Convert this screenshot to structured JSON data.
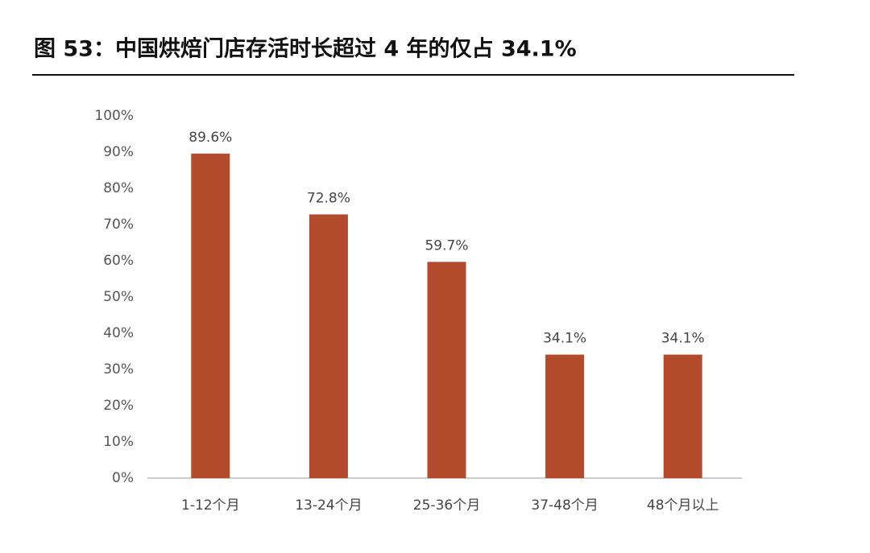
{
  "chart_data": {
    "type": "bar",
    "title": "图 53：中国烘焙门店存活时长超过 4 年的仅占 34.1%",
    "categories": [
      "1-12个月",
      "13-24个月",
      "25-36个月",
      "37-48个月",
      "48个月以上"
    ],
    "values": [
      89.6,
      72.8,
      59.7,
      34.1,
      34.1
    ],
    "value_labels": [
      "89.6%",
      "72.8%",
      "59.7%",
      "34.1%",
      "34.1%"
    ],
    "color": "#b44a2c",
    "ylim": [
      0,
      100
    ],
    "yticks": [
      {
        "value": 0,
        "label": "0%"
      },
      {
        "value": 10,
        "label": "10%"
      },
      {
        "value": 20,
        "label": "20%"
      },
      {
        "value": 30,
        "label": "30%"
      },
      {
        "value": 40,
        "label": "40%"
      },
      {
        "value": 50,
        "label": "50%"
      },
      {
        "value": 60,
        "label": "60%"
      },
      {
        "value": 70,
        "label": "70%"
      },
      {
        "value": 80,
        "label": "80%"
      },
      {
        "value": 90,
        "label": "90%"
      },
      {
        "value": 100,
        "label": "100%"
      }
    ],
    "grid": false
  }
}
